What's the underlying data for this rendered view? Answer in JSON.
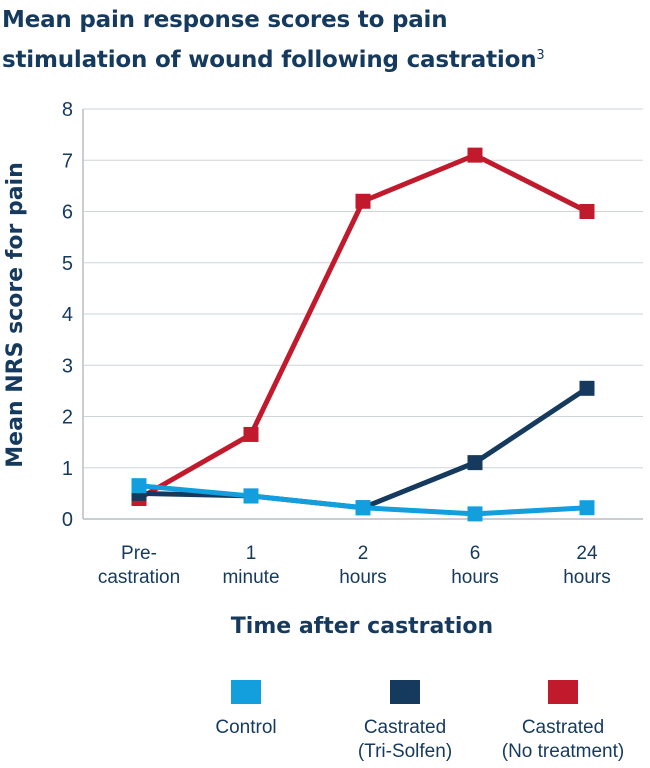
{
  "title": {
    "line1": "Mean pain response scores to pain",
    "line2": "stimulation of wound following castration",
    "superscript": "3"
  },
  "chart_data": {
    "type": "line",
    "title": "Mean pain response scores to pain stimulation of wound following castration",
    "xlabel": "Time after castration",
    "ylabel": "Mean NRS score for pain",
    "categories": [
      [
        "Pre-",
        "castration"
      ],
      [
        "1",
        "minute"
      ],
      [
        "2",
        "hours"
      ],
      [
        "6",
        "hours"
      ],
      [
        "24",
        "hours"
      ]
    ],
    "ylim": [
      0,
      8
    ],
    "yticks": [
      0,
      1,
      2,
      3,
      4,
      5,
      6,
      7,
      8
    ],
    "grid": true,
    "legend_position": "bottom",
    "series": [
      {
        "name": "Castrated (No treatment)",
        "color": "#c01a2c",
        "values": [
          0.4,
          1.65,
          6.2,
          7.1,
          6.0
        ]
      },
      {
        "name": "Castrated (Tri-Solfen)",
        "color": "#153a5e",
        "values": [
          0.5,
          0.45,
          0.22,
          1.1,
          2.55
        ]
      },
      {
        "name": "Control",
        "color": "#139fde",
        "values": [
          0.65,
          0.45,
          0.22,
          0.1,
          0.22
        ]
      }
    ]
  },
  "legend": [
    {
      "lines": [
        "Control"
      ],
      "color": "#139fde"
    },
    {
      "lines": [
        "Castrated",
        "(Tri-Solfen)"
      ],
      "color": "#153a5e"
    },
    {
      "lines": [
        "Castrated",
        "(No treatment)"
      ],
      "color": "#c01a2c"
    }
  ]
}
